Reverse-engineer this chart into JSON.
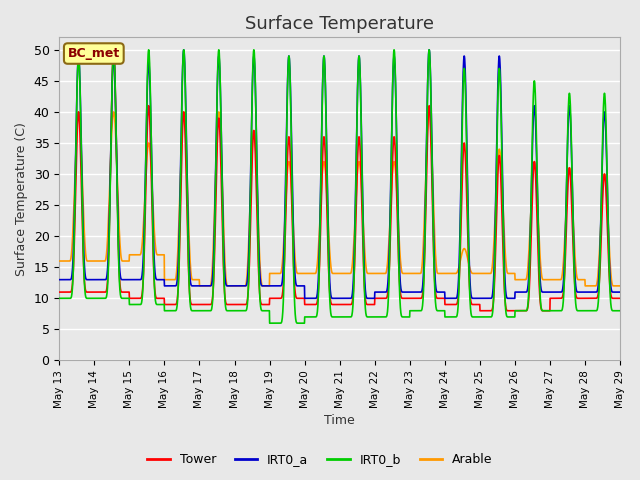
{
  "title": "Surface Temperature",
  "ylabel": "Surface Temperature (C)",
  "xlabel": "Time",
  "ylim": [
    0,
    52
  ],
  "yticks": [
    0,
    5,
    10,
    15,
    20,
    25,
    30,
    35,
    40,
    45,
    50
  ],
  "plot_bg_color": "#e8e8e8",
  "grid_color": "white",
  "series": {
    "Tower": {
      "color": "#ff0000",
      "lw": 1.2
    },
    "IRT0_a": {
      "color": "#0000cc",
      "lw": 1.2
    },
    "IRT0_b": {
      "color": "#00cc00",
      "lw": 1.2
    },
    "Arable": {
      "color": "#ff9900",
      "lw": 1.2
    }
  },
  "legend_label": "BC_met",
  "legend_bg": "#ffff99",
  "legend_border": "#8B6914",
  "n_days": 16,
  "start_day": 13,
  "pts_per_day": 144,
  "day_peaks_tower": [
    40,
    50,
    41,
    40,
    39,
    37,
    36,
    36,
    36,
    36,
    41,
    35,
    33,
    32,
    31,
    30
  ],
  "day_peaks_irt0a": [
    49,
    49,
    48,
    50,
    49,
    49,
    49,
    49,
    49,
    49,
    50,
    49,
    49,
    41,
    41,
    40
  ],
  "day_peaks_irt0b": [
    49,
    50,
    50,
    50,
    50,
    50,
    49,
    49,
    49,
    50,
    50,
    47,
    47,
    45,
    43,
    43
  ],
  "day_peaks_arable": [
    40,
    40,
    35,
    40,
    40,
    37,
    32,
    32,
    32,
    32,
    40,
    18,
    34,
    32,
    31,
    30
  ],
  "day_mins_tower": [
    11,
    11,
    10,
    9,
    9,
    9,
    10,
    9,
    9,
    10,
    10,
    9,
    8,
    8,
    10,
    10
  ],
  "day_mins_irt0a": [
    13,
    13,
    13,
    12,
    12,
    12,
    12,
    10,
    10,
    11,
    11,
    10,
    10,
    11,
    11,
    11
  ],
  "day_mins_irt0b": [
    10,
    10,
    9,
    8,
    8,
    8,
    6,
    7,
    7,
    7,
    8,
    7,
    7,
    8,
    8,
    8
  ],
  "day_mins_arable": [
    16,
    16,
    17,
    13,
    12,
    12,
    14,
    14,
    14,
    14,
    14,
    14,
    14,
    13,
    13,
    12
  ],
  "peak_sharpness": 4.0,
  "peak_phase": 0.55
}
